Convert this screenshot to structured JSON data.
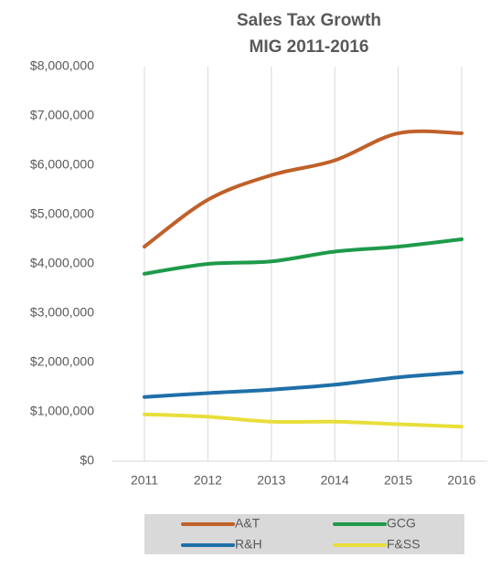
{
  "chart_data": {
    "type": "line",
    "title": "Sales Tax Growth",
    "subtitle": "MIG 2011-2016",
    "categories": [
      "2011",
      "2012",
      "2013",
      "2014",
      "2015",
      "2016"
    ],
    "series": [
      {
        "name": "A&T",
        "color": "#c0602a",
        "values": [
          4350000,
          5300000,
          5800000,
          6100000,
          6650000,
          6650000
        ]
      },
      {
        "name": "GCG",
        "color": "#1e9a4a",
        "values": [
          3800000,
          4000000,
          4050000,
          4250000,
          4350000,
          4500000
        ]
      },
      {
        "name": "R&H",
        "color": "#1f6fa8",
        "values": [
          1300000,
          1380000,
          1450000,
          1550000,
          1700000,
          1800000
        ]
      },
      {
        "name": "F&SS",
        "color": "#e8de3a",
        "values": [
          950000,
          900000,
          800000,
          800000,
          750000,
          700000
        ]
      }
    ],
    "ylim": [
      0,
      8000000
    ],
    "yticks": [
      {
        "value": 0,
        "label": "$0"
      },
      {
        "value": 1000000,
        "label": "$1,000,000"
      },
      {
        "value": 2000000,
        "label": "$2,000,000"
      },
      {
        "value": 3000000,
        "label": "$3,000,000"
      },
      {
        "value": 4000000,
        "label": "$4,000,000"
      },
      {
        "value": 5000000,
        "label": "$5,000,000"
      },
      {
        "value": 6000000,
        "label": "$6,000,000"
      },
      {
        "value": 7000000,
        "label": "$7,000,000"
      },
      {
        "value": 8000000,
        "label": "$8,000,000"
      }
    ],
    "grid": true,
    "legend": "bottom"
  }
}
